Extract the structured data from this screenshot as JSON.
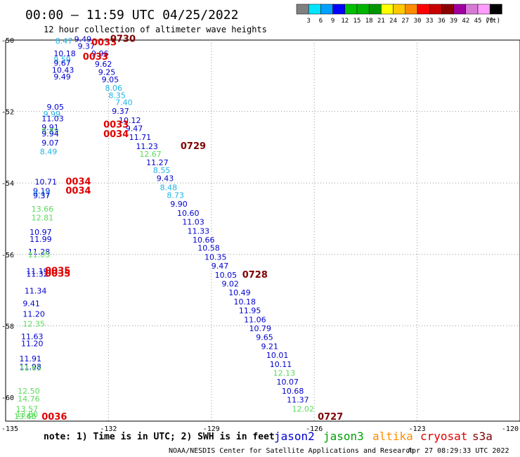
{
  "header": {
    "title": "00:00 – 11:59 UTC 04/25/2022",
    "subtitle": "12 hour collection of altimeter wave heights"
  },
  "colorbar": {
    "colors": [
      "#808080",
      "#00e5ff",
      "#00a0ff",
      "#0000ff",
      "#00c000",
      "#00b400",
      "#009600",
      "#ffff00",
      "#ffc800",
      "#ff8c00",
      "#ff0000",
      "#c80000",
      "#8c0000",
      "#a000a0",
      "#d67ad6",
      "#ff9cff",
      "#000000"
    ],
    "labels": [
      "3",
      "6",
      "9",
      "12",
      "15",
      "18",
      "21",
      "24",
      "27",
      "30",
      "33",
      "36",
      "39",
      "42",
      "45",
      "70",
      "(ft)"
    ]
  },
  "axes": {
    "x_ticks": [
      "-135",
      "-132",
      "-129",
      "-126",
      "-123",
      "-120"
    ],
    "y_ticks": [
      "-50",
      "-52",
      "-54",
      "-56",
      "-58",
      "-60"
    ]
  },
  "footer": {
    "note": "note:  1) Time is in UTC;  2) SWH is in feet",
    "legend": [
      {
        "name": "jason2",
        "color": "#0000d0"
      },
      {
        "name": "jason3",
        "color": "#00a000"
      },
      {
        "name": "altika",
        "color": "#ff8c00"
      },
      {
        "name": "cryosat",
        "color": "#e00000"
      },
      {
        "name": "s3a",
        "color": "#800000"
      }
    ],
    "credit": "NOAA/NESDIS Center for Satellite Applications and Research",
    "timestamp": "Apr 27 08:29:33 UTC 2022"
  },
  "observations": [
    {
      "lon": -133.55,
      "lat": -50.1,
      "v": "8.47",
      "c": "#1eb4e6"
    },
    {
      "lon": -133.0,
      "lat": -50.05,
      "v": "9.49",
      "c": "#0000d0"
    },
    {
      "lon": -132.9,
      "lat": -50.25,
      "v": "9.37",
      "c": "#0000d0"
    },
    {
      "lon": -133.6,
      "lat": -50.45,
      "v": "10.18",
      "c": "#0000d0"
    },
    {
      "lon": -133.6,
      "lat": -50.62,
      "v": "9.59",
      "c": "#1eb4e6"
    },
    {
      "lon": -133.6,
      "lat": -50.72,
      "v": "9.67",
      "c": "#0000d0"
    },
    {
      "lon": -133.65,
      "lat": -50.92,
      "v": "10.43",
      "c": "#0000d0"
    },
    {
      "lon": -133.6,
      "lat": -51.1,
      "v": "9.49",
      "c": "#0000d0"
    },
    {
      "lon": -132.5,
      "lat": -50.45,
      "v": "9.96",
      "c": "#0000d0"
    },
    {
      "lon": -132.4,
      "lat": -50.75,
      "v": "9.62",
      "c": "#0000d0"
    },
    {
      "lon": -132.3,
      "lat": -50.97,
      "v": "9.25",
      "c": "#0000d0"
    },
    {
      "lon": -132.2,
      "lat": -51.18,
      "v": "9.05",
      "c": "#0000d0"
    },
    {
      "lon": -132.1,
      "lat": -51.42,
      "v": "8.06",
      "c": "#1eb4e6"
    },
    {
      "lon": -132.0,
      "lat": -51.62,
      "v": "8.35",
      "c": "#1eb4e6"
    },
    {
      "lon": -131.8,
      "lat": -51.82,
      "v": "7.40",
      "c": "#1eb4e6"
    },
    {
      "lon": -131.9,
      "lat": -52.07,
      "v": "9.37",
      "c": "#0000d0"
    },
    {
      "lon": -131.7,
      "lat": -52.32,
      "v": "10.12",
      "c": "#0000d0"
    },
    {
      "lon": -131.5,
      "lat": -52.55,
      "v": "9.47",
      "c": "#0000d0"
    },
    {
      "lon": -131.4,
      "lat": -52.8,
      "v": "11.71",
      "c": "#0000d0"
    },
    {
      "lon": -131.2,
      "lat": -53.05,
      "v": "11.23",
      "c": "#0000d0"
    },
    {
      "lon": -131.1,
      "lat": -53.27,
      "v": "12.67",
      "c": "#5ada5a"
    },
    {
      "lon": -130.9,
      "lat": -53.5,
      "v": "11.27",
      "c": "#0000d0"
    },
    {
      "lon": -130.7,
      "lat": -53.72,
      "v": "8.55",
      "c": "#1eb4e6"
    },
    {
      "lon": -130.6,
      "lat": -53.95,
      "v": "9.43",
      "c": "#0000d0"
    },
    {
      "lon": -130.5,
      "lat": -54.2,
      "v": "8.48",
      "c": "#1eb4e6"
    },
    {
      "lon": -130.3,
      "lat": -54.42,
      "v": "8.73",
      "c": "#1eb4e6"
    },
    {
      "lon": -130.2,
      "lat": -54.67,
      "v": "9.90",
      "c": "#0000d0"
    },
    {
      "lon": -130.0,
      "lat": -54.92,
      "v": "10.60",
      "c": "#0000d0"
    },
    {
      "lon": -129.85,
      "lat": -55.17,
      "v": "11.03",
      "c": "#0000d0"
    },
    {
      "lon": -129.7,
      "lat": -55.42,
      "v": "11.33",
      "c": "#0000d0"
    },
    {
      "lon": -129.55,
      "lat": -55.67,
      "v": "10.66",
      "c": "#0000d0"
    },
    {
      "lon": -129.4,
      "lat": -55.9,
      "v": "10.58",
      "c": "#0000d0"
    },
    {
      "lon": -129.2,
      "lat": -56.15,
      "v": "10.35",
      "c": "#0000d0"
    },
    {
      "lon": -129.0,
      "lat": -56.4,
      "v": "9.47",
      "c": "#0000d0"
    },
    {
      "lon": -128.9,
      "lat": -56.65,
      "v": "10.05",
      "c": "#0000d0"
    },
    {
      "lon": -128.7,
      "lat": -56.9,
      "v": "9.02",
      "c": "#0000d0"
    },
    {
      "lon": -128.5,
      "lat": -57.15,
      "v": "10.49",
      "c": "#0000d0"
    },
    {
      "lon": -128.35,
      "lat": -57.4,
      "v": "10.18",
      "c": "#0000d0"
    },
    {
      "lon": -128.2,
      "lat": -57.65,
      "v": "11.95",
      "c": "#0000d0"
    },
    {
      "lon": -128.05,
      "lat": -57.9,
      "v": "11.06",
      "c": "#0000d0"
    },
    {
      "lon": -127.9,
      "lat": -58.15,
      "v": "10.79",
      "c": "#0000d0"
    },
    {
      "lon": -127.7,
      "lat": -58.4,
      "v": "9.65",
      "c": "#0000d0"
    },
    {
      "lon": -127.55,
      "lat": -58.65,
      "v": "9.21",
      "c": "#0000d0"
    },
    {
      "lon": -127.4,
      "lat": -58.9,
      "v": "10.01",
      "c": "#0000d0"
    },
    {
      "lon": -127.3,
      "lat": -59.15,
      "v": "10.11",
      "c": "#0000d0"
    },
    {
      "lon": -127.2,
      "lat": -59.4,
      "v": "12.13",
      "c": "#5ada5a"
    },
    {
      "lon": -127.1,
      "lat": -59.65,
      "v": "10.07",
      "c": "#0000d0"
    },
    {
      "lon": -126.95,
      "lat": -59.9,
      "v": "10.68",
      "c": "#0000d0"
    },
    {
      "lon": -126.8,
      "lat": -60.15,
      "v": "11.37",
      "c": "#0000d0"
    },
    {
      "lon": -126.65,
      "lat": -60.4,
      "v": "12.02",
      "c": "#5ada5a"
    },
    {
      "lon": -133.8,
      "lat": -51.95,
      "v": "9.05",
      "c": "#0000d0"
    },
    {
      "lon": -133.9,
      "lat": -52.15,
      "v": "9.99",
      "c": "#1eb4e6"
    },
    {
      "lon": -133.95,
      "lat": -52.27,
      "v": "11.03",
      "c": "#0000d0"
    },
    {
      "lon": -133.95,
      "lat": -52.52,
      "v": "9.91",
      "c": "#0000d0"
    },
    {
      "lon": -133.95,
      "lat": -52.62,
      "v": "9.89",
      "c": "#5ada5a"
    },
    {
      "lon": -133.95,
      "lat": -52.7,
      "v": "9.94",
      "c": "#0000d0"
    },
    {
      "lon": -133.95,
      "lat": -52.95,
      "v": "9.07",
      "c": "#0000d0"
    },
    {
      "lon": -134.0,
      "lat": -53.2,
      "v": "8.49",
      "c": "#1eb4e6"
    },
    {
      "lon": -134.15,
      "lat": -54.05,
      "v": "10.71",
      "c": "#0000d0"
    },
    {
      "lon": -134.2,
      "lat": -54.3,
      "v": "9.19",
      "c": "#0000d0"
    },
    {
      "lon": -134.2,
      "lat": -54.38,
      "v": "9.47",
      "c": "#1eb4e6"
    },
    {
      "lon": -134.2,
      "lat": -54.43,
      "v": "9.37",
      "c": "#0000d0"
    },
    {
      "lon": -134.25,
      "lat": -54.8,
      "v": "13.66",
      "c": "#5ada5a"
    },
    {
      "lon": -134.25,
      "lat": -55.05,
      "v": "12.81",
      "c": "#5ada5a"
    },
    {
      "lon": -134.3,
      "lat": -55.45,
      "v": "10.97",
      "c": "#0000d0"
    },
    {
      "lon": -134.3,
      "lat": -55.65,
      "v": "11.99",
      "c": "#0000d0"
    },
    {
      "lon": -134.35,
      "lat": -56.0,
      "v": "11.28",
      "c": "#0000d0"
    },
    {
      "lon": -134.35,
      "lat": -56.08,
      "v": "11.05",
      "c": "#5ada5a"
    },
    {
      "lon": -134.4,
      "lat": -56.55,
      "v": "11.19",
      "c": "#0000d0"
    },
    {
      "lon": -134.4,
      "lat": -56.62,
      "v": "11.32",
      "c": "#0000d0"
    },
    {
      "lon": -134.45,
      "lat": -57.1,
      "v": "11.34",
      "c": "#0000d0"
    },
    {
      "lon": -134.5,
      "lat": -57.45,
      "v": "9.41",
      "c": "#0000d0"
    },
    {
      "lon": -134.5,
      "lat": -57.75,
      "v": "11.20",
      "c": "#0000d0"
    },
    {
      "lon": -134.5,
      "lat": -58.02,
      "v": "12.35",
      "c": "#5ada5a"
    },
    {
      "lon": -134.55,
      "lat": -58.38,
      "v": "11.63",
      "c": "#0000d0"
    },
    {
      "lon": -134.55,
      "lat": -58.57,
      "v": "11.20",
      "c": "#0000d0"
    },
    {
      "lon": -134.6,
      "lat": -59.0,
      "v": "11.91",
      "c": "#0000d0"
    },
    {
      "lon": -134.6,
      "lat": -59.22,
      "v": "11.98",
      "c": "#0000d0"
    },
    {
      "lon": -134.6,
      "lat": -59.25,
      "v": "11.65",
      "c": "#5ada5a"
    },
    {
      "lon": -134.65,
      "lat": -59.9,
      "v": "12.50",
      "c": "#5ada5a"
    },
    {
      "lon": -134.65,
      "lat": -60.12,
      "v": "14.76",
      "c": "#5ada5a"
    },
    {
      "lon": -134.7,
      "lat": -60.4,
      "v": "13.57",
      "c": "#5ada5a"
    },
    {
      "lon": -134.7,
      "lat": -60.55,
      "v": "13.80",
      "c": "#5ada5a"
    },
    {
      "lon": -134.75,
      "lat": -60.95,
      "v": "13.63",
      "c": "#5ada5a"
    },
    {
      "lon": -134.75,
      "lat": -61.15,
      "v": "13.46",
      "c": "#5ada5a"
    }
  ],
  "time_labels": [
    {
      "lon": -132.5,
      "lat": -50.15,
      "v": "0033",
      "c": "#e00000"
    },
    {
      "lon": -131.95,
      "lat": -50.05,
      "v": "0730",
      "c": "#800000"
    },
    {
      "lon": -132.75,
      "lat": -50.55,
      "v": "0033",
      "c": "#e00000"
    },
    {
      "lon": -132.15,
      "lat": -52.45,
      "v": "0033",
      "c": "#e00000"
    },
    {
      "lon": -132.15,
      "lat": -52.72,
      "v": "0034",
      "c": "#e00000"
    },
    {
      "lon": -129.9,
      "lat": -53.05,
      "v": "0729",
      "c": "#800000"
    },
    {
      "lon": -133.25,
      "lat": -54.05,
      "v": "0034",
      "c": "#e00000"
    },
    {
      "lon": -133.25,
      "lat": -54.3,
      "v": "0034",
      "c": "#e00000"
    },
    {
      "lon": -133.85,
      "lat": -56.55,
      "v": "0035",
      "c": "#e00000"
    },
    {
      "lon": -133.85,
      "lat": -56.62,
      "v": "0035",
      "c": "#e00000"
    },
    {
      "lon": -128.1,
      "lat": -56.65,
      "v": "0728",
      "c": "#800000"
    },
    {
      "lon": -133.95,
      "lat": -61.15,
      "v": "0036",
      "c": "#e00000"
    },
    {
      "lon": -125.9,
      "lat": -61.05,
      "v": "0727",
      "c": "#800000"
    }
  ]
}
